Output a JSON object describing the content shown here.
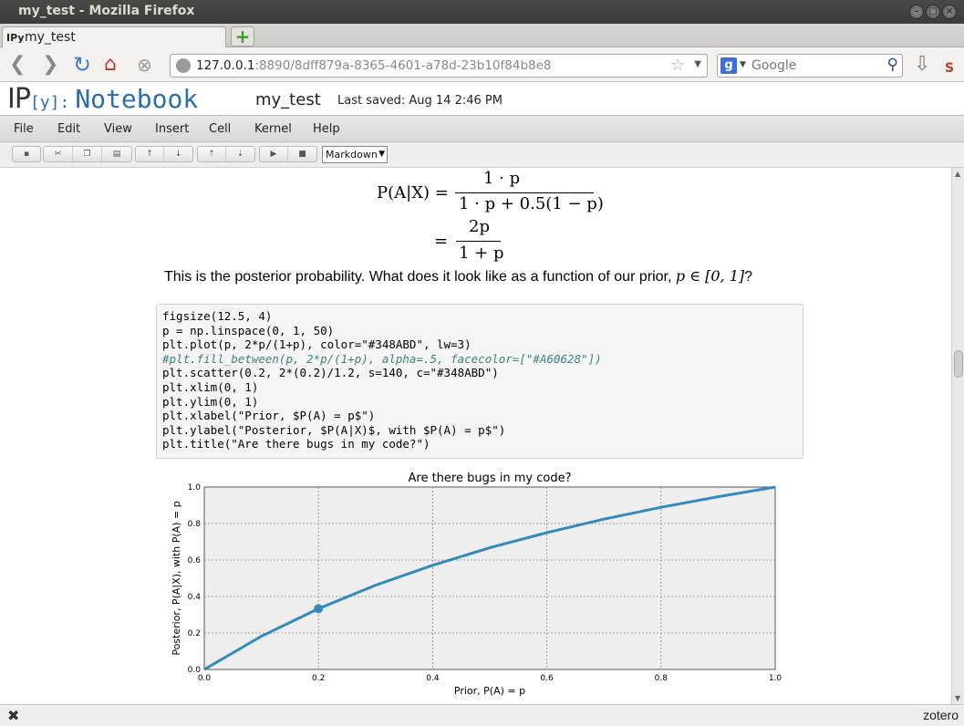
{
  "window": {
    "title": "my_test - Mozilla Firefox"
  },
  "tabs": [
    {
      "icon_text": "IPy",
      "label": "my_test"
    }
  ],
  "nav": {
    "url_host": "127.0.0.1",
    "url_path": ":8890/8dff879a-8365-4601-a78d-23b10f84b8e8",
    "search_placeholder": "Google"
  },
  "ipython": {
    "logo_ip": "IP",
    "logo_y": "[y]:",
    "logo_nb": "Notebook",
    "notebook_name": "my_test",
    "last_saved": "Last saved: Aug 14 2:46 PM"
  },
  "menubar": [
    "File",
    "Edit",
    "View",
    "Insert",
    "Cell",
    "Kernel",
    "Help"
  ],
  "toolbar": {
    "cell_type": "Markdown"
  },
  "markdown": {
    "eq1_lhs": "P(A|X) =",
    "eq1_num": "1 · p",
    "eq1_den": "1 · p + 0.5(1 − p)",
    "eq2_eq": "=",
    "eq2_num": "2p",
    "eq2_den": "1 + p",
    "prose_text": "This is the posterior probability. What does it look like as a function of our prior,",
    "prose_math": "p ∈ [0, 1]",
    "prose_end": "?"
  },
  "code_lines": [
    "figsize(12.5, 4)",
    "p = np.linspace(0, 1, 50)",
    "plt.plot(p, 2*p/(1+p), color=\"#348ABD\", lw=3)",
    "#plt.fill_between(p, 2*p/(1+p), alpha=.5, facecolor=[\"#A60628\"])",
    "plt.scatter(0.2, 2*(0.2)/1.2, s=140, c=\"#348ABD\")",
    "plt.xlim(0, 1)",
    "plt.ylim(0, 1)",
    "plt.xlabel(\"Prior, $P(A) = p$\")",
    "plt.ylabel(\"Posterior, $P(A|X)$, with $P(A) = p$\")",
    "plt.title(\"Are there bugs in my code?\")"
  ],
  "chart_data": {
    "type": "line",
    "title": "Are there bugs in my code?",
    "xlabel": "Prior, P(A) = p",
    "ylabel": "Posterior, P(A|X), with P(A) = p",
    "xlim": [
      0,
      1
    ],
    "ylim": [
      0,
      1
    ],
    "xticks": [
      "0.0",
      "0.2",
      "0.4",
      "0.6",
      "0.8",
      "1.0"
    ],
    "yticks": [
      "0.0",
      "0.2",
      "0.4",
      "0.6",
      "0.8",
      "1.0"
    ],
    "grid": true,
    "series": [
      {
        "x": [
          0,
          0.1,
          0.2,
          0.3,
          0.4,
          0.5,
          0.6,
          0.7,
          0.8,
          0.9,
          1.0
        ],
        "y": [
          0,
          0.182,
          0.333,
          0.462,
          0.571,
          0.667,
          0.75,
          0.824,
          0.889,
          0.947,
          1.0
        ],
        "color": "#348ABD"
      }
    ],
    "points": [
      {
        "x": 0.2,
        "y": 0.333,
        "color": "#348ABD"
      }
    ]
  },
  "statusbar": {
    "close": "✖",
    "right": "zotero"
  }
}
